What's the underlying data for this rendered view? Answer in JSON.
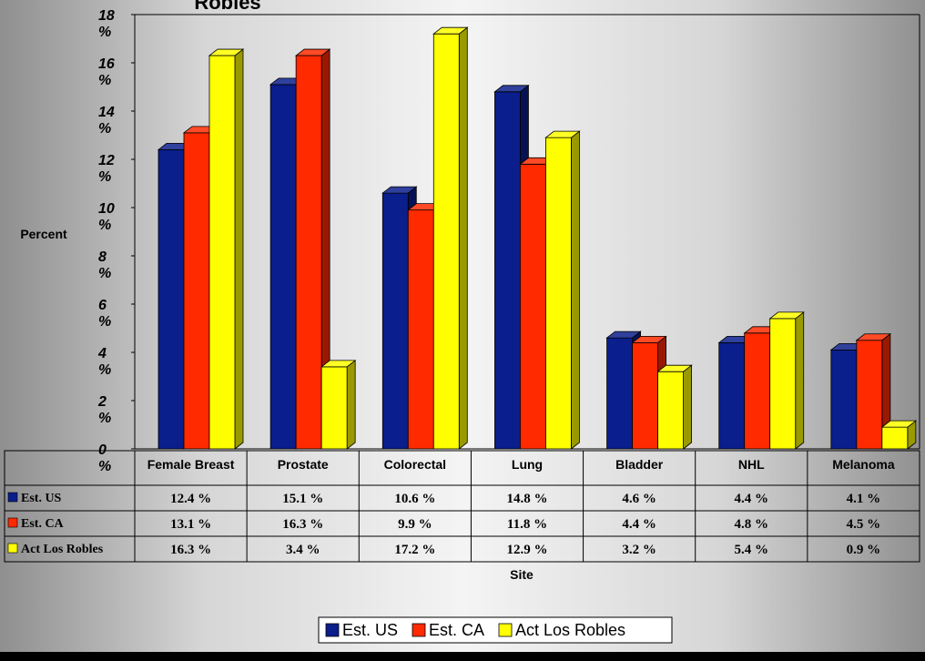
{
  "chart_data": {
    "type": "bar",
    "title": "Robles",
    "xlabel": "Site",
    "ylabel": "Percent",
    "ylim": [
      0,
      18
    ],
    "yticks": [
      "0 %",
      "2 %",
      "4 %",
      "6 %",
      "8 %",
      "10 %",
      "12 %",
      "14 %",
      "16 %",
      "18 %"
    ],
    "categories": [
      "Female Breast",
      "Prostate",
      "Colorectal",
      "Lung",
      "Bladder",
      "NHL",
      "Melanoma"
    ],
    "series": [
      {
        "name": "Est. US",
        "color": "#0a1e8c",
        "values": [
          12.4,
          15.1,
          10.6,
          14.8,
          4.6,
          4.4,
          4.1
        ],
        "labels": [
          "12.4 %",
          "15.1 %",
          "10.6 %",
          "14.8 %",
          "4.6 %",
          "4.4 %",
          "4.1 %"
        ]
      },
      {
        "name": "Est. CA",
        "color": "#ff2a00",
        "values": [
          13.1,
          16.3,
          9.9,
          11.8,
          4.4,
          4.8,
          4.5
        ],
        "labels": [
          "13.1 %",
          "16.3 %",
          "9.9 %",
          "11.8 %",
          "4.4 %",
          "4.8 %",
          "4.5 %"
        ]
      },
      {
        "name": "Act Los Robles",
        "color": "#ffff00",
        "values": [
          16.3,
          3.4,
          17.2,
          12.9,
          3.2,
          5.4,
          0.9
        ],
        "labels": [
          "16.3 %",
          "3.4 %",
          "17.2 %",
          "12.9 %",
          "3.2 %",
          "5.4 %",
          "0.9 %"
        ]
      }
    ],
    "legend": "bottom",
    "grid": false
  }
}
